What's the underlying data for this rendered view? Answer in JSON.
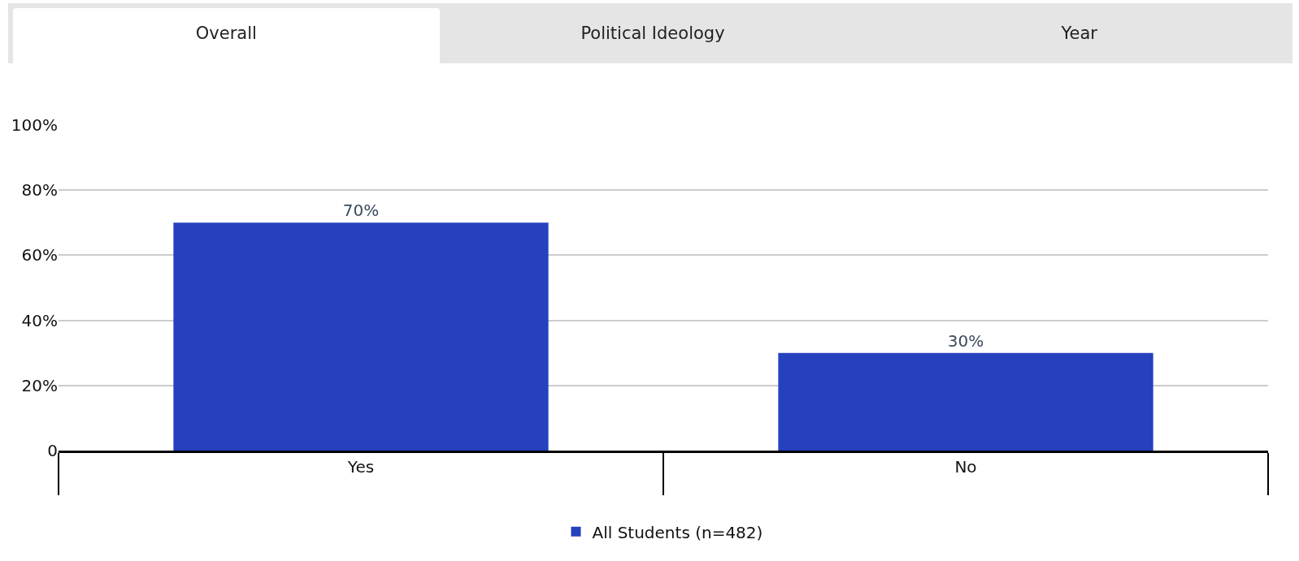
{
  "chart_data": {
    "type": "bar",
    "annotations": [
      "Overall",
      "Political Ideology",
      "Year"
    ],
    "categories": [
      "Yes",
      "No"
    ],
    "series": [
      {
        "name": "All Students (n=482)",
        "color": "#2541be",
        "values": [
          70,
          30
        ],
        "value_labels": [
          "70%",
          "30%"
        ]
      }
    ],
    "ylim": [
      0,
      100
    ],
    "yticks": [
      0,
      {
        "value": 20,
        "label": "20%"
      },
      {
        "value": 40,
        "label": "40%"
      },
      {
        "value": 60,
        "label": "60%"
      },
      {
        "value": 80,
        "label": "80%"
      },
      {
        "value": 100,
        "label": "100%"
      }
    ],
    "grid": "y",
    "legend": "bottom"
  }
}
